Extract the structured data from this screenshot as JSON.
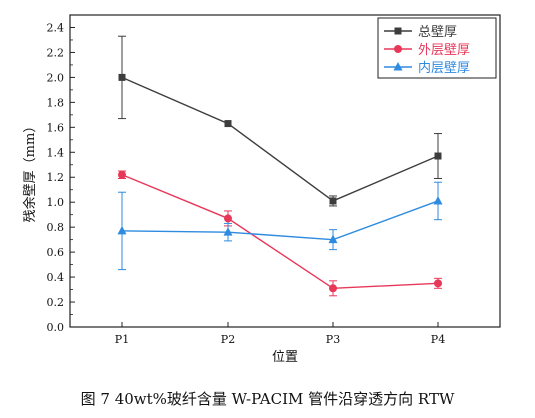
{
  "chart_data": {
    "type": "line",
    "caption": "图 7 40wt%玻纤含量 W-PACIM 管件沿穿透方向 RTW",
    "xlabel": "位置",
    "ylabel": "残余壁厚（mm）",
    "categories": [
      "P1",
      "P2",
      "P3",
      "P4"
    ],
    "ylim": [
      0.0,
      2.5
    ],
    "yticks": [
      "0.0",
      "0.2",
      "0.4",
      "0.6",
      "0.8",
      "1.0",
      "1.2",
      "1.4",
      "1.6",
      "1.8",
      "2.0",
      "2.2",
      "2.4"
    ],
    "legend_position": "top-right",
    "series": [
      {
        "name": "总壁厚",
        "color": "#3d3d3d",
        "marker": "square",
        "values": [
          2.0,
          1.63,
          1.01,
          1.37
        ],
        "err": [
          0.33,
          0.0,
          0.04,
          0.18
        ]
      },
      {
        "name": "外层壁厚",
        "color": "#e8385a",
        "marker": "circle",
        "values": [
          1.22,
          0.87,
          0.31,
          0.35
        ],
        "err": [
          0.03,
          0.06,
          0.06,
          0.04
        ]
      },
      {
        "name": "内层壁厚",
        "color": "#2f8be0",
        "marker": "triangle",
        "values": [
          0.77,
          0.76,
          0.7,
          1.01
        ],
        "err": [
          0.31,
          0.07,
          0.08,
          0.15
        ]
      }
    ]
  }
}
